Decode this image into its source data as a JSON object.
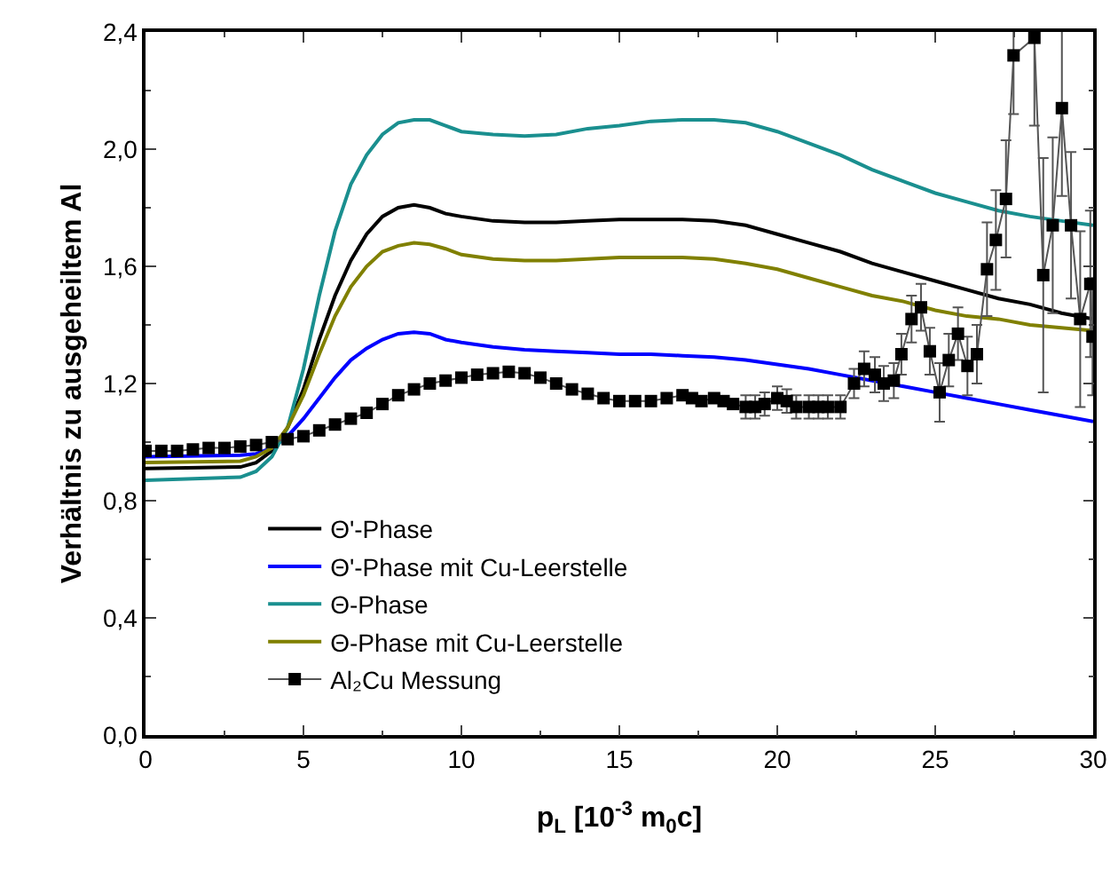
{
  "chart_data": {
    "type": "line",
    "xlabel": "p$_{L}$ [10$^{-3}$ m$_{0}$c]",
    "ylabel": "Verhältnis zu ausgeheiltem Al",
    "xlim": [
      0,
      30
    ],
    "xticks": [
      0,
      5,
      10,
      15,
      20,
      25,
      30
    ],
    "ylim": [
      0,
      2.4
    ],
    "yticks": [
      {
        "value": 0,
        "label": "0,0"
      },
      {
        "value": 0.4,
        "label": "0,4"
      },
      {
        "value": 0.8,
        "label": "0,8"
      },
      {
        "value": 1.2,
        "label": "1,2"
      },
      {
        "value": 1.6,
        "label": "1,6"
      },
      {
        "value": 2.0,
        "label": "2,0"
      },
      {
        "value": 2.4,
        "label": "2,4"
      }
    ],
    "grid": false,
    "legend": "bottom left",
    "line_style": "solid",
    "series": [
      {
        "name": "Θ'-Phase",
        "color": "#000000",
        "x": [
          0,
          3,
          3.5,
          4,
          4.5,
          5,
          5.5,
          6,
          6.5,
          7,
          7.5,
          8,
          8.5,
          9,
          9.5,
          10,
          11,
          12,
          13,
          14,
          15,
          16,
          17,
          18,
          19,
          20,
          21,
          22,
          23,
          24,
          25,
          26,
          27,
          28,
          29,
          30
        ],
        "values": [
          0.91,
          0.915,
          0.93,
          0.97,
          1.05,
          1.18,
          1.35,
          1.5,
          1.62,
          1.71,
          1.77,
          1.8,
          1.81,
          1.8,
          1.78,
          1.77,
          1.755,
          1.75,
          1.75,
          1.755,
          1.76,
          1.76,
          1.76,
          1.755,
          1.74,
          1.71,
          1.68,
          1.65,
          1.61,
          1.58,
          1.55,
          1.52,
          1.49,
          1.47,
          1.44,
          1.42
        ]
      },
      {
        "name": "Θ'-Phase mit Cu-Leerstelle",
        "color": "#0000ff",
        "x": [
          0,
          3,
          3.5,
          4,
          4.5,
          5,
          5.5,
          6,
          6.5,
          7,
          7.5,
          8,
          8.5,
          9,
          9.5,
          10,
          11,
          12,
          13,
          14,
          15,
          16,
          17,
          18,
          19,
          20,
          21,
          22,
          23,
          24,
          25,
          26,
          27,
          28,
          29,
          30
        ],
        "values": [
          0.95,
          0.955,
          0.96,
          0.98,
          1.02,
          1.08,
          1.15,
          1.22,
          1.28,
          1.32,
          1.35,
          1.37,
          1.375,
          1.37,
          1.35,
          1.34,
          1.325,
          1.315,
          1.31,
          1.305,
          1.3,
          1.3,
          1.295,
          1.29,
          1.28,
          1.265,
          1.25,
          1.23,
          1.21,
          1.19,
          1.17,
          1.15,
          1.13,
          1.11,
          1.09,
          1.07
        ]
      },
      {
        "name": "Θ-Phase",
        "color": "#1a8f8f",
        "x": [
          0,
          3,
          3.5,
          4,
          4.5,
          5,
          5.5,
          6,
          6.5,
          7,
          7.5,
          8,
          8.5,
          9,
          9.5,
          10,
          11,
          12,
          13,
          14,
          15,
          16,
          17,
          18,
          19,
          20,
          21,
          22,
          23,
          24,
          25,
          26,
          27,
          28,
          29,
          30
        ],
        "values": [
          0.87,
          0.88,
          0.9,
          0.95,
          1.05,
          1.25,
          1.5,
          1.72,
          1.88,
          1.98,
          2.05,
          2.09,
          2.1,
          2.1,
          2.08,
          2.06,
          2.05,
          2.045,
          2.05,
          2.07,
          2.08,
          2.095,
          2.1,
          2.1,
          2.09,
          2.06,
          2.02,
          1.98,
          1.93,
          1.89,
          1.85,
          1.82,
          1.79,
          1.77,
          1.755,
          1.74
        ]
      },
      {
        "name": "Θ-Phase mit Cu-Leerstelle",
        "color": "#808000",
        "x": [
          0,
          3,
          3.5,
          4,
          4.5,
          5,
          5.5,
          6,
          6.5,
          7,
          7.5,
          8,
          8.5,
          9,
          9.5,
          10,
          11,
          12,
          13,
          14,
          15,
          16,
          17,
          18,
          19,
          20,
          21,
          22,
          23,
          24,
          25,
          26,
          27,
          28,
          29,
          30
        ],
        "values": [
          0.93,
          0.935,
          0.95,
          0.98,
          1.05,
          1.16,
          1.3,
          1.43,
          1.53,
          1.6,
          1.65,
          1.67,
          1.68,
          1.675,
          1.66,
          1.64,
          1.625,
          1.62,
          1.62,
          1.625,
          1.63,
          1.63,
          1.63,
          1.625,
          1.61,
          1.59,
          1.56,
          1.53,
          1.5,
          1.48,
          1.45,
          1.43,
          1.42,
          1.4,
          1.39,
          1.38
        ]
      },
      {
        "name": "Al₂Cu Messung",
        "color": "#000000",
        "marker": "square",
        "x": [
          0,
          0.5,
          1,
          1.5,
          2,
          2.5,
          3,
          3.5,
          4,
          4.5,
          5,
          5.5,
          6,
          6.5,
          7,
          7.5,
          8,
          8.5,
          9,
          9.5,
          10,
          10.5,
          11,
          11.5,
          12,
          12.5,
          13,
          13.5,
          14,
          14.5,
          15,
          15.5,
          16,
          16.5,
          17,
          17.3,
          17.6,
          18,
          18.3,
          18.6,
          19,
          19.3,
          19.6,
          20,
          20.3,
          20.6,
          21,
          21.3,
          21.6,
          22,
          22.43,
          22.75,
          23.09,
          23.37,
          23.69,
          23.93,
          24.25,
          24.55,
          24.83,
          25.14,
          25.43,
          25.72,
          26.02,
          26.32,
          26.64,
          26.92,
          27.24,
          27.48,
          28.14,
          28.42,
          28.72,
          29.01,
          29.3,
          29.59,
          29.91,
          29.98
        ],
        "values": [
          0.97,
          0.97,
          0.97,
          0.975,
          0.98,
          0.98,
          0.985,
          0.99,
          1,
          1.01,
          1.02,
          1.04,
          1.06,
          1.08,
          1.1,
          1.13,
          1.16,
          1.18,
          1.2,
          1.21,
          1.22,
          1.23,
          1.235,
          1.24,
          1.235,
          1.22,
          1.2,
          1.18,
          1.165,
          1.15,
          1.14,
          1.14,
          1.14,
          1.15,
          1.16,
          1.15,
          1.14,
          1.15,
          1.14,
          1.13,
          1.12,
          1.12,
          1.13,
          1.15,
          1.14,
          1.12,
          1.12,
          1.12,
          1.12,
          1.12,
          1.2,
          1.25,
          1.23,
          1.2,
          1.21,
          1.3,
          1.42,
          1.46,
          1.31,
          1.17,
          1.28,
          1.37,
          1.26,
          1.3,
          1.59,
          1.69,
          1.83,
          2.32,
          2.38,
          1.57,
          1.74,
          2.14,
          1.74,
          1.42,
          1.54,
          1.36
        ],
        "errors": [
          null,
          null,
          null,
          null,
          null,
          null,
          null,
          null,
          null,
          null,
          null,
          null,
          null,
          null,
          null,
          null,
          null,
          null,
          null,
          null,
          null,
          null,
          null,
          null,
          null,
          null,
          null,
          null,
          null,
          null,
          null,
          null,
          null,
          null,
          null,
          null,
          null,
          null,
          null,
          null,
          0.04,
          0.04,
          0.04,
          0.04,
          0.04,
          0.04,
          0.04,
          0.04,
          0.04,
          0.04,
          0.05,
          0.06,
          0.06,
          0.06,
          0.06,
          0.07,
          0.08,
          0.08,
          0.08,
          0.1,
          0.09,
          0.09,
          0.1,
          0.1,
          0.16,
          0.17,
          0.2,
          0.2,
          0.3,
          0.4,
          0.3,
          0.3,
          0.25,
          0.3,
          0.25,
          0.2
        ]
      }
    ]
  }
}
